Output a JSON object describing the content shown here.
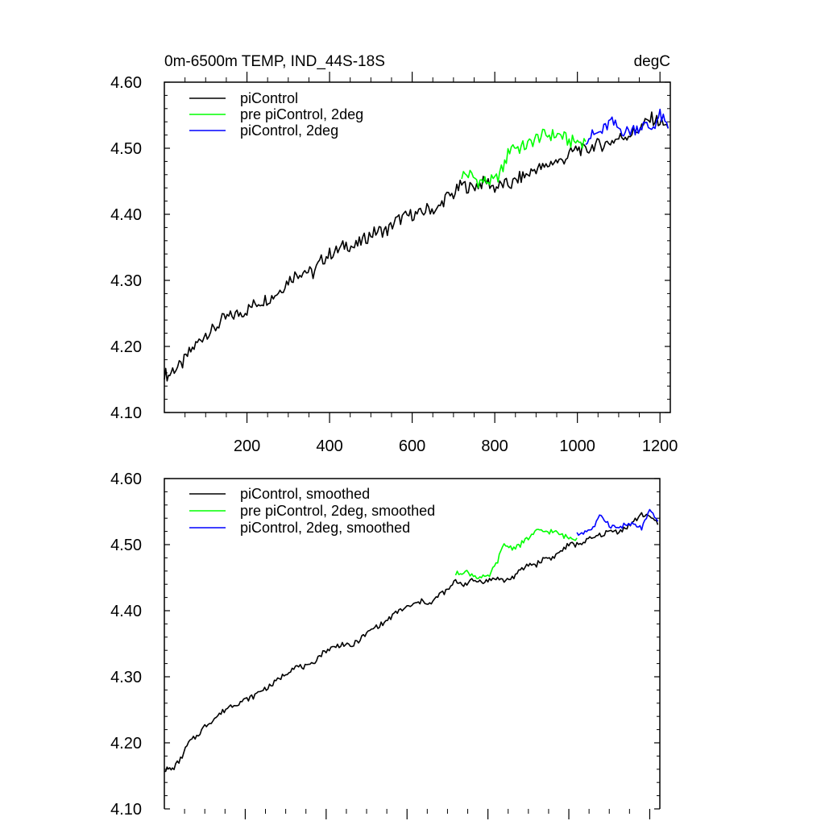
{
  "colors": {
    "piControl": "#000000",
    "pre_piControl_2deg": "#00ff00",
    "piControl_2deg": "#0000ff"
  },
  "chart_data": [
    {
      "type": "line",
      "title": "0m-6500m TEMP, IND_44S-18S",
      "units": "degC",
      "xlabel": "",
      "ylabel": "",
      "xlim": [
        0,
        1225
      ],
      "ylim": [
        4.1,
        4.6
      ],
      "x_ticks": [
        200,
        400,
        600,
        800,
        1000,
        1200
      ],
      "x_tick_labels": [
        "200",
        "400",
        "600",
        "800",
        "1000",
        "1200"
      ],
      "y_ticks": [
        4.1,
        4.2,
        4.3,
        4.4,
        4.5,
        4.6
      ],
      "y_tick_labels": [
        "4.10",
        "4.20",
        "4.30",
        "4.40",
        "4.50",
        "4.60"
      ],
      "legend_position": "top-left",
      "series": [
        {
          "name": "piControl",
          "color_key": "piControl",
          "x": [
            0,
            10,
            20,
            40,
            60,
            80,
            100,
            120,
            140,
            160,
            180,
            200,
            220,
            240,
            260,
            280,
            300,
            320,
            340,
            360,
            380,
            400,
            420,
            440,
            460,
            480,
            500,
            520,
            540,
            560,
            580,
            600,
            620,
            640,
            660,
            680,
            700,
            720,
            740,
            760,
            780,
            800,
            820,
            840,
            860,
            880,
            900,
            920,
            940,
            960,
            980,
            1000,
            1020,
            1040,
            1060,
            1080,
            1100,
            1120,
            1140,
            1160,
            1180,
            1200,
            1220
          ],
          "values": [
            4.16,
            4.155,
            4.165,
            4.17,
            4.19,
            4.205,
            4.22,
            4.225,
            4.24,
            4.245,
            4.25,
            4.255,
            4.265,
            4.27,
            4.275,
            4.285,
            4.3,
            4.31,
            4.315,
            4.31,
            4.33,
            4.34,
            4.345,
            4.355,
            4.35,
            4.36,
            4.37,
            4.375,
            4.375,
            4.39,
            4.395,
            4.4,
            4.4,
            4.41,
            4.405,
            4.425,
            4.43,
            4.445,
            4.44,
            4.445,
            4.45,
            4.44,
            4.445,
            4.445,
            4.455,
            4.46,
            4.47,
            4.47,
            4.48,
            4.48,
            4.49,
            4.5,
            4.495,
            4.505,
            4.505,
            4.51,
            4.515,
            4.52,
            4.525,
            4.535,
            4.545,
            4.54,
            4.53
          ]
        },
        {
          "name": "pre piControl, 2deg",
          "color_key": "pre_piControl_2deg",
          "x": [
            720,
            740,
            760,
            780,
            800,
            820,
            840,
            860,
            880,
            900,
            920,
            940,
            960,
            980,
            1000,
            1020
          ],
          "values": [
            4.46,
            4.46,
            4.45,
            4.45,
            4.45,
            4.47,
            4.505,
            4.5,
            4.505,
            4.515,
            4.52,
            4.52,
            4.52,
            4.51,
            4.51,
            4.51
          ]
        },
        {
          "name": "piControl, 2deg",
          "color_key": "piControl_2deg",
          "x": [
            1020,
            1040,
            1060,
            1080,
            1100,
            1120,
            1140,
            1160,
            1180,
            1200,
            1220
          ],
          "values": [
            4.515,
            4.52,
            4.525,
            4.54,
            4.53,
            4.525,
            4.53,
            4.535,
            4.53,
            4.55,
            4.53
          ]
        }
      ]
    },
    {
      "type": "line",
      "title": "",
      "xlabel": "",
      "ylabel": "",
      "xlim": [
        0,
        1225
      ],
      "ylim": [
        4.1,
        4.6
      ],
      "y_ticks": [
        4.1,
        4.2,
        4.3,
        4.4,
        4.5,
        4.6
      ],
      "y_tick_labels": [
        "4.10",
        "4.20",
        "4.30",
        "4.40",
        "4.50",
        "4.60"
      ],
      "legend_position": "top-left",
      "series": [
        {
          "name": "piControl, smoothed",
          "color_key": "piControl",
          "x": [
            0,
            10,
            20,
            40,
            60,
            80,
            100,
            120,
            140,
            160,
            180,
            200,
            220,
            240,
            260,
            280,
            300,
            320,
            340,
            360,
            380,
            400,
            420,
            440,
            460,
            480,
            500,
            520,
            540,
            560,
            580,
            600,
            620,
            640,
            660,
            680,
            700,
            720,
            740,
            760,
            780,
            800,
            820,
            840,
            860,
            880,
            900,
            920,
            940,
            960,
            980,
            1000,
            1020,
            1040,
            1060,
            1080,
            1100,
            1120,
            1140,
            1160,
            1180,
            1200,
            1220
          ],
          "values": [
            4.16,
            4.16,
            4.16,
            4.175,
            4.2,
            4.21,
            4.225,
            4.235,
            4.245,
            4.255,
            4.26,
            4.265,
            4.27,
            4.28,
            4.285,
            4.295,
            4.305,
            4.315,
            4.315,
            4.315,
            4.33,
            4.34,
            4.345,
            4.35,
            4.345,
            4.355,
            4.365,
            4.375,
            4.38,
            4.39,
            4.4,
            4.405,
            4.41,
            4.415,
            4.41,
            4.425,
            4.43,
            4.445,
            4.44,
            4.445,
            4.445,
            4.445,
            4.45,
            4.445,
            4.45,
            4.46,
            4.47,
            4.47,
            4.48,
            4.48,
            4.49,
            4.5,
            4.5,
            4.505,
            4.51,
            4.515,
            4.52,
            4.52,
            4.525,
            4.535,
            4.545,
            4.545,
            4.53
          ]
        },
        {
          "name": "pre piControl, 2deg, smoothed",
          "color_key": "pre_piControl_2deg",
          "x": [
            720,
            740,
            760,
            780,
            800,
            820,
            840,
            860,
            880,
            900,
            920,
            940,
            960,
            980,
            1000,
            1020
          ],
          "values": [
            4.455,
            4.46,
            4.455,
            4.45,
            4.45,
            4.47,
            4.5,
            4.495,
            4.5,
            4.51,
            4.52,
            4.52,
            4.52,
            4.515,
            4.51,
            4.51
          ]
        },
        {
          "name": "piControl, 2deg, smoothed",
          "color_key": "piControl_2deg",
          "x": [
            1020,
            1040,
            1060,
            1080,
            1100,
            1120,
            1140,
            1160,
            1180,
            1200,
            1220
          ],
          "values": [
            4.515,
            4.52,
            4.525,
            4.545,
            4.53,
            4.525,
            4.53,
            4.53,
            4.525,
            4.55,
            4.535
          ]
        }
      ]
    }
  ]
}
